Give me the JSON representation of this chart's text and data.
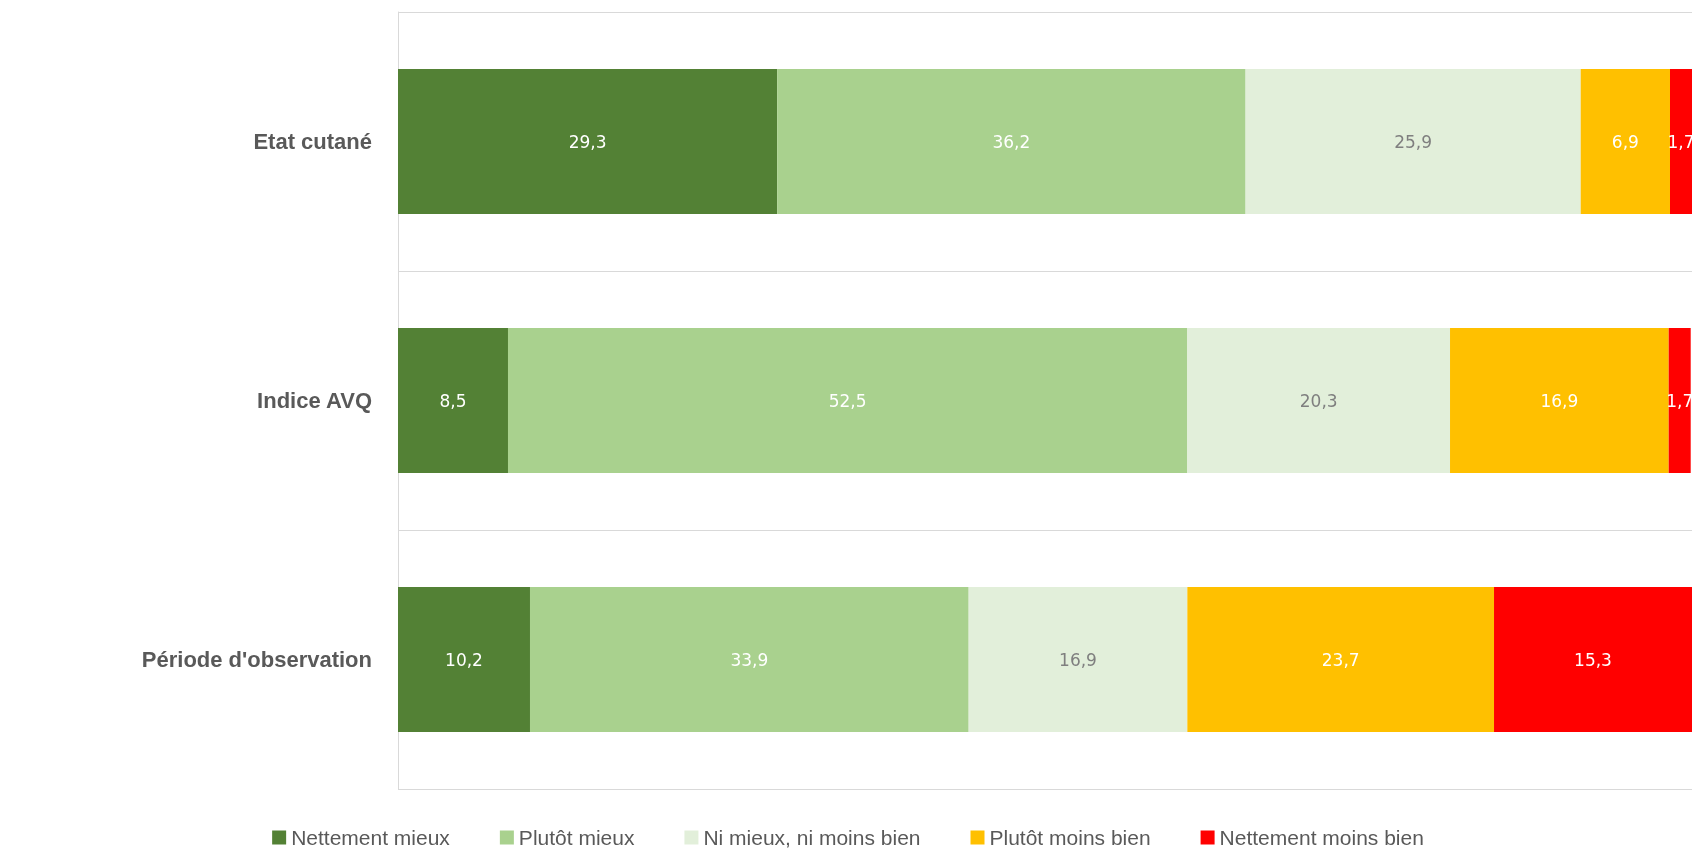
{
  "chart_data": {
    "type": "bar",
    "orientation": "horizontal",
    "stacked": true,
    "categories": [
      "Etat cutané",
      "Indice AVQ",
      "Période d'observation"
    ],
    "xlim": [
      0,
      100
    ],
    "tick_labels": "y",
    "grid": "y",
    "legend": "bottom",
    "series": [
      {
        "name": "Nettement mieux",
        "color": "#538135",
        "values": [
          29.3,
          8.5,
          10.2
        ],
        "value_labels": [
          "29,3",
          "8,5",
          "10,2"
        ]
      },
      {
        "name": "Plutôt mieux",
        "color": "#a9d18e",
        "values": [
          36.2,
          52.5,
          33.9
        ],
        "value_labels": [
          "36,2",
          "52,5",
          "33,9"
        ]
      },
      {
        "name": "Ni mieux, ni moins bien",
        "color": "#e2efda",
        "values": [
          25.9,
          20.3,
          16.9
        ],
        "value_labels": [
          "25,9",
          "20,3",
          "16,9"
        ]
      },
      {
        "name": "Plutôt moins bien",
        "color": "#ffc000",
        "values": [
          6.9,
          16.9,
          23.7
        ],
        "value_labels": [
          "6,9",
          "16,9",
          "23,7"
        ]
      },
      {
        "name": "Nettement moins bien",
        "color": "#ff0000",
        "values": [
          1.7,
          1.7,
          15.3
        ],
        "value_labels": [
          "1,7",
          "1,7",
          "15,3"
        ]
      }
    ]
  }
}
